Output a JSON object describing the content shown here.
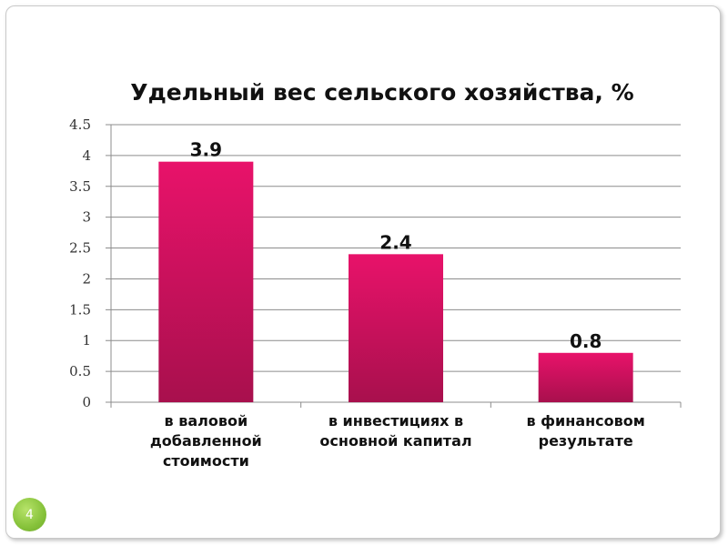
{
  "page": {
    "slide_number": "4"
  },
  "colors": {
    "bar_top": "#e8126a",
    "bar_bottom": "#a8104d"
  },
  "chart_data": {
    "type": "bar",
    "title": "Удельный вес сельского хозяйства, %",
    "categories": [
      "в валовой добавленной стоимости",
      "в инвестициях в основной капитал",
      "в финансовом результате"
    ],
    "category_lines": [
      [
        "в валовой",
        "добавленной",
        "стоимости"
      ],
      [
        "в инвестициях в",
        "основной капитал"
      ],
      [
        "в финансовом",
        "результате"
      ]
    ],
    "values": [
      3.9,
      2.4,
      0.8
    ],
    "data_labels": [
      "3.9",
      "2.4",
      "0.8"
    ],
    "ylim": [
      0,
      4.5
    ],
    "yticks": [
      0,
      0.5,
      1,
      1.5,
      2,
      2.5,
      3,
      3.5,
      4,
      4.5
    ],
    "ytick_labels": [
      "0",
      "0.5",
      "1",
      "1.5",
      "2",
      "2.5",
      "3",
      "3.5",
      "4",
      "4.5"
    ],
    "grid": true,
    "legend": "none"
  }
}
